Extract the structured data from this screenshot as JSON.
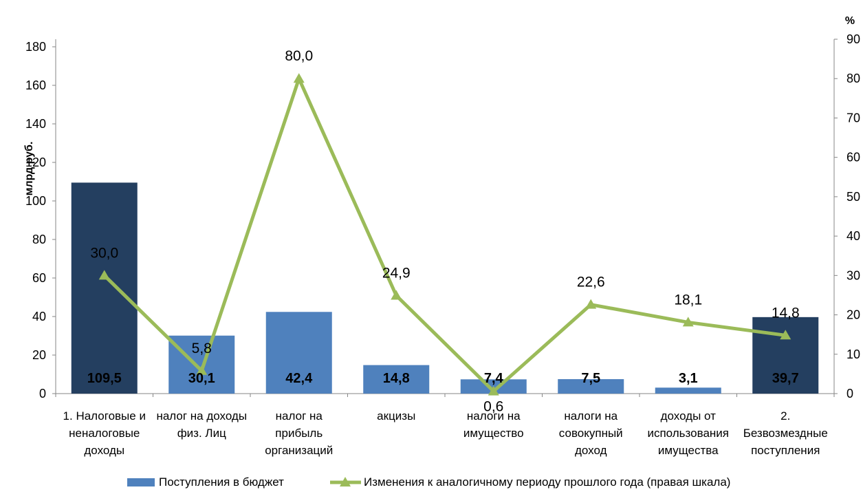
{
  "chart_data": {
    "type": "bar",
    "categories": [
      [
        "1. Налоговые и",
        "неналоговые",
        "доходы"
      ],
      [
        "налог на доходы",
        "физ. Лиц"
      ],
      [
        "налог на",
        "прибыль",
        "организаций"
      ],
      [
        "акцизы"
      ],
      [
        "налоги на",
        "имущество"
      ],
      [
        "налоги на",
        "совокупный",
        "доход"
      ],
      [
        "доходы от",
        "использования",
        "имущества"
      ],
      [
        "2.",
        "Безвозмездные",
        "поступления"
      ]
    ],
    "series": [
      {
        "name": "Поступления в бюджет",
        "kind": "bar",
        "axis": "left",
        "values": [
          109.5,
          30.1,
          42.4,
          14.8,
          7.4,
          7.5,
          3.1,
          39.7
        ],
        "labels": [
          "109,5",
          "30,1",
          "42,4",
          "14,8",
          "7,4",
          "7,5",
          "3,1",
          "39,7"
        ],
        "color": "#4f81bd",
        "highlight_color": "#243f60",
        "highlight_indices": [
          0,
          7
        ]
      },
      {
        "name": "Изменения к аналогичному периоду прошлого года (правая шкала)",
        "kind": "line",
        "axis": "right",
        "marker": "triangle",
        "values": [
          30.0,
          5.8,
          80.0,
          24.9,
          0.6,
          22.6,
          18.1,
          14.8
        ],
        "labels": [
          "30,0",
          "5,8",
          "80,0",
          "24,9",
          "0,6",
          "22,6",
          "18,1",
          "14,8"
        ],
        "color": "#9bbb59"
      }
    ],
    "ylabel": "млрд руб.",
    "y2label": "%",
    "ylim": [
      0,
      190
    ],
    "yticks": [
      0,
      20,
      40,
      60,
      80,
      100,
      120,
      140,
      160,
      180
    ],
    "y2lim": [
      0,
      90
    ],
    "y2ticks": [
      0,
      10,
      20,
      30,
      40,
      50,
      60,
      70,
      80,
      90
    ],
    "grid": false,
    "legend_position": "bottom"
  }
}
